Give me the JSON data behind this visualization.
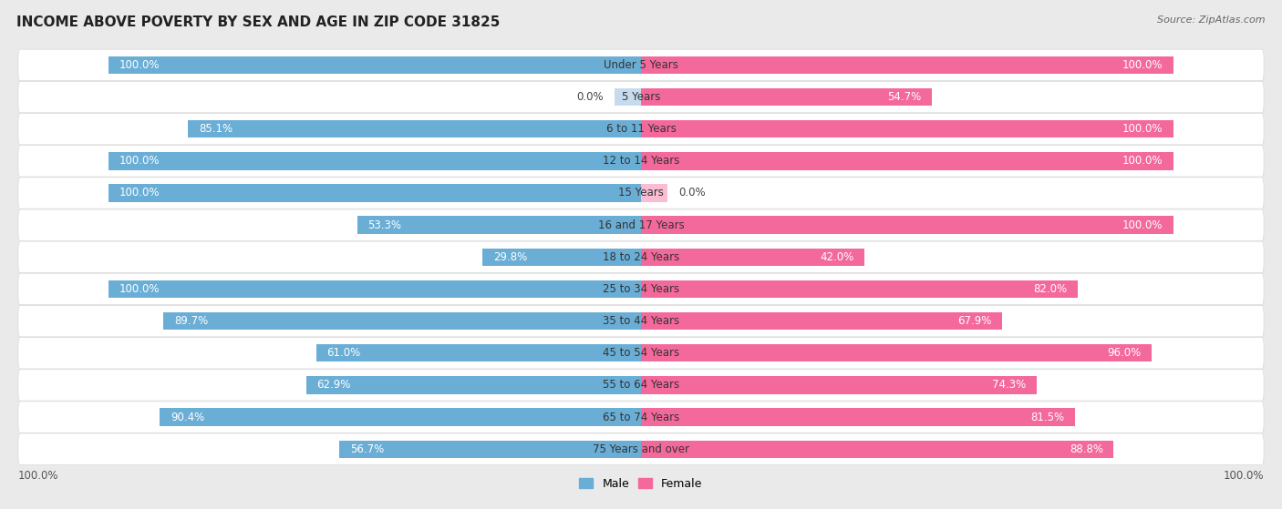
{
  "title": "INCOME ABOVE POVERTY BY SEX AND AGE IN ZIP CODE 31825",
  "source": "Source: ZipAtlas.com",
  "categories": [
    "Under 5 Years",
    "5 Years",
    "6 to 11 Years",
    "12 to 14 Years",
    "15 Years",
    "16 and 17 Years",
    "18 to 24 Years",
    "25 to 34 Years",
    "35 to 44 Years",
    "45 to 54 Years",
    "55 to 64 Years",
    "65 to 74 Years",
    "75 Years and over"
  ],
  "male": [
    100.0,
    0.0,
    85.1,
    100.0,
    100.0,
    53.3,
    29.8,
    100.0,
    89.7,
    61.0,
    62.9,
    90.4,
    56.7
  ],
  "female": [
    100.0,
    54.7,
    100.0,
    100.0,
    0.0,
    100.0,
    42.0,
    82.0,
    67.9,
    96.0,
    74.3,
    81.5,
    88.8
  ],
  "male_color": "#6aaed6",
  "male_color_light": "#c6dcee",
  "female_color": "#f4699b",
  "female_color_light": "#f9bcd2",
  "bg_color": "#eaeaea",
  "row_bg": "#f5f5f5",
  "row_border": "#dddddd",
  "title_fontsize": 11,
  "label_fontsize": 8.5,
  "category_fontsize": 8.5,
  "bar_height": 0.55,
  "xlim": 100.0,
  "legend_male": "Male",
  "legend_female": "Female"
}
